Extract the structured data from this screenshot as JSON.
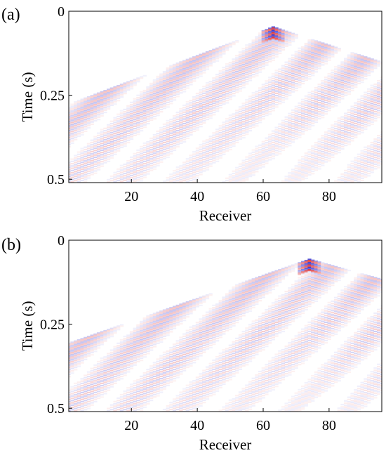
{
  "chart_data": [
    {
      "type": "heatmap",
      "panel_label": "(a)",
      "xlabel": "Receiver",
      "ylabel": "Time (s)",
      "x_ticks": [
        20,
        40,
        60,
        80
      ],
      "x_tick_labels": [
        "20",
        "40",
        "60",
        "80"
      ],
      "y_ticks": [
        0,
        0.25,
        0.5
      ],
      "y_tick_labels": [
        "0",
        "0.25",
        "0.5"
      ],
      "xlim": [
        1,
        96
      ],
      "ylim": [
        0.51,
        0
      ],
      "source_receiver": 63,
      "direct_arrival_time_s": 0.05,
      "left_edge_time_s": 0.28,
      "right_edge_time_s": 0.155,
      "colormap": [
        "#0000c8",
        "#ffffff",
        "#d80000"
      ]
    },
    {
      "type": "heatmap",
      "panel_label": "(b)",
      "xlabel": "Receiver",
      "ylabel": "Time (s)",
      "x_ticks": [
        20,
        40,
        60,
        80
      ],
      "x_tick_labels": [
        "20",
        "40",
        "60",
        "80"
      ],
      "y_ticks": [
        0,
        0.25,
        0.5
      ],
      "y_tick_labels": [
        "0",
        "0.25",
        "0.5"
      ],
      "xlim": [
        1,
        96
      ],
      "ylim": [
        0.51,
        0
      ],
      "source_receiver": 74,
      "direct_arrival_time_s": 0.06,
      "left_edge_time_s": 0.31,
      "right_edge_time_s": 0.12,
      "colormap": [
        "#0000c8",
        "#ffffff",
        "#d80000"
      ]
    }
  ]
}
